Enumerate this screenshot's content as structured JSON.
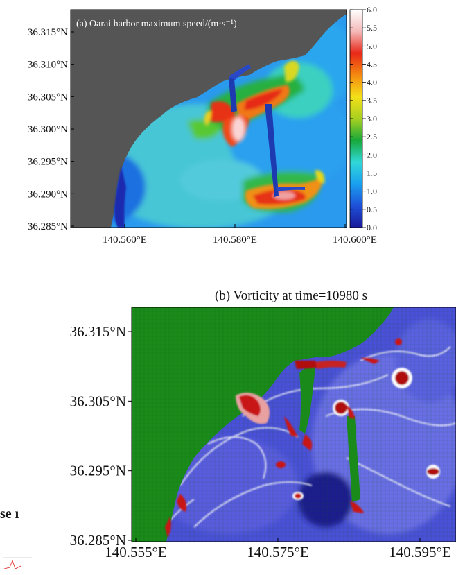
{
  "chart_data": [
    {
      "type": "heatmap",
      "title": "(a) Oarai harbor maximum speed/(m·s⁻¹)",
      "x_ticks": [
        "140.560°E",
        "140.580°E",
        "140.600°E"
      ],
      "y_ticks": [
        "36.315°N",
        "36.310°N",
        "36.305°N",
        "36.300°N",
        "36.295°N",
        "36.290°N",
        "36.285°N"
      ],
      "xlim": [
        140.55,
        140.6
      ],
      "ylim": [
        36.285,
        36.318
      ],
      "colorbar": {
        "min": 0.0,
        "max": 6.0,
        "ticks": [
          "6.0",
          "5.5",
          "5.0",
          "4.5",
          "4.0",
          "3.5",
          "3.0",
          "2.5",
          "2.0",
          "1.5",
          "1.0",
          "0.5",
          "0.0"
        ],
        "colors": [
          "#1a1a9a",
          "#1e50d8",
          "#1aa0f0",
          "#30d8d8",
          "#18a83a",
          "#a8d020",
          "#f4e018",
          "#f48a10",
          "#e82818",
          "#f4b8b8",
          "#ffffff"
        ]
      },
      "land_color": "#555555"
    },
    {
      "type": "heatmap",
      "title": "(b) Vorticity at time=10980 s",
      "x_ticks": [
        "140.555°E",
        "140.575°E",
        "140.595°E"
      ],
      "y_ticks": [
        "36.315°N",
        "36.305°N",
        "36.295°N",
        "36.285°N"
      ],
      "xlim": [
        140.552,
        140.599
      ],
      "ylim": [
        36.285,
        36.318
      ],
      "land_color": "#1a8a1a",
      "water_color": "#4a50d8"
    }
  ],
  "fragment": {
    "label": "se ı"
  },
  "colors": {
    "land_a": "#555555",
    "land_b": "#1a8a1a",
    "water_b": "#4a50d8"
  }
}
